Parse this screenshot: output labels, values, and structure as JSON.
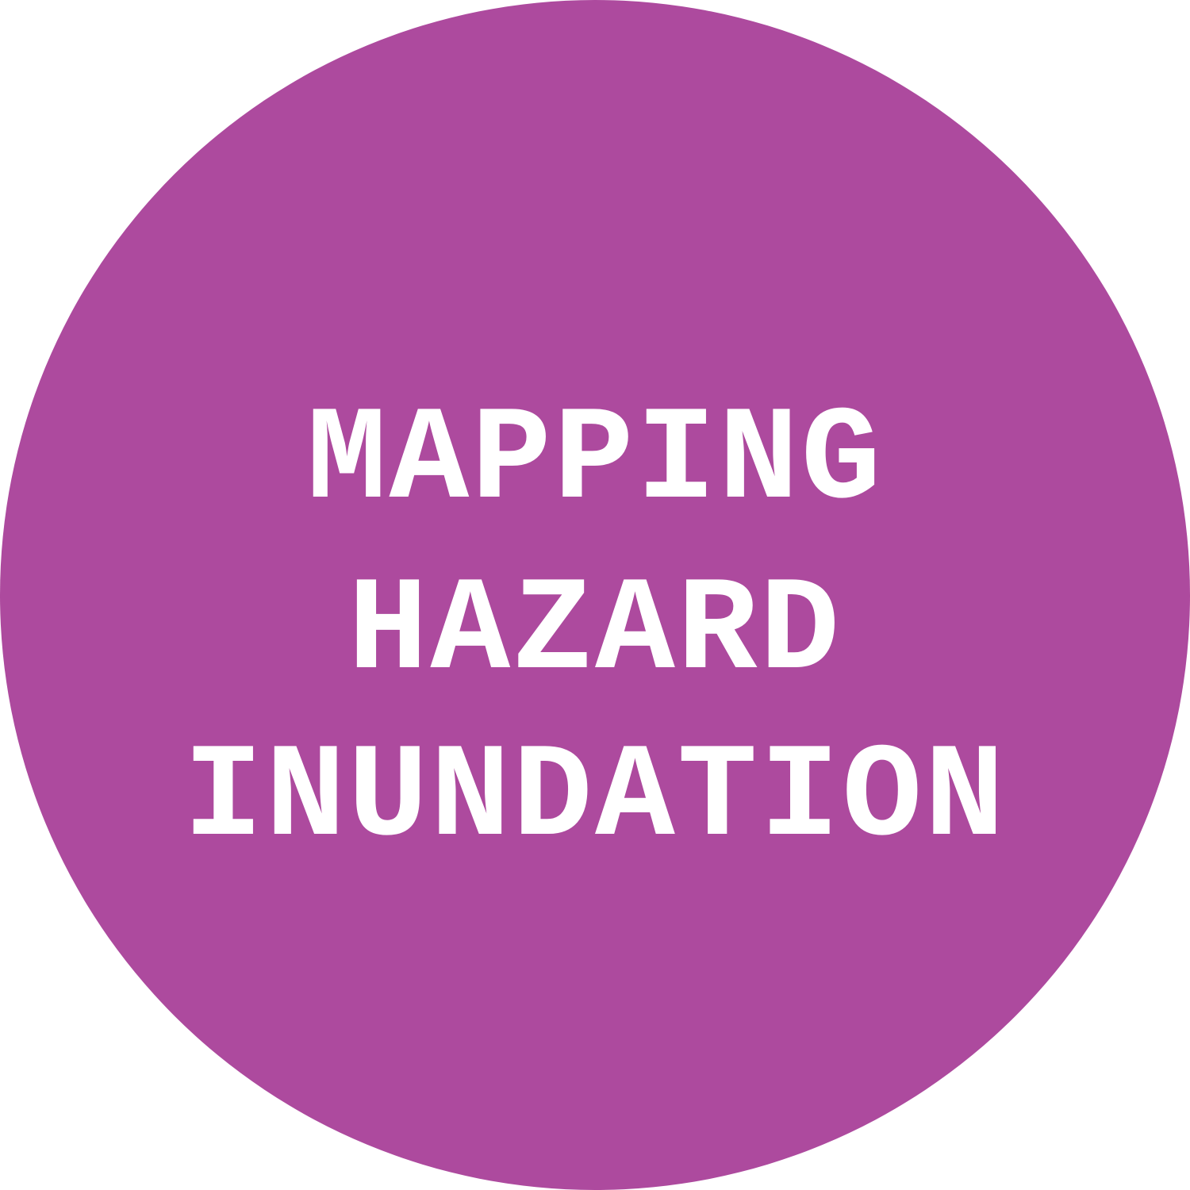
{
  "badge": {
    "lines": [
      "MAPPING",
      "HAZARD",
      "INUNDATION"
    ],
    "colors": {
      "circle_fill": "#ad4a9e",
      "text": "#ffffff",
      "background": "#ffffff"
    }
  }
}
